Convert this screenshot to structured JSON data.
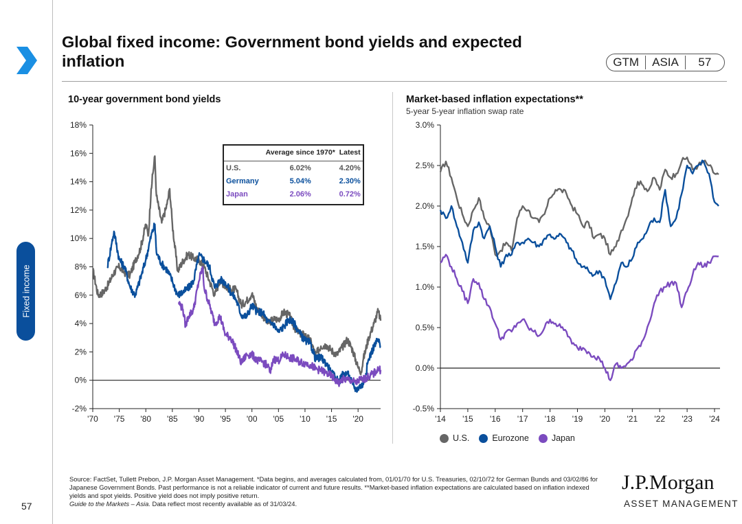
{
  "page": {
    "title": "Global fixed income: Government bond yields and expected inflation",
    "badge": [
      "GTM",
      "ASIA",
      "57"
    ],
    "side_tab": "Fixed income",
    "page_number": "57",
    "source": "Source: FactSet, Tullett Prebon, J.P. Morgan Asset Management. *Data begins, and averages calculated from, 01/01/70 for U.S. Treasuries, 02/10/72 for German Bunds and 03/02/86 for Japanese Government Bonds. Past performance is not a reliable indicator of current and future results. **Market-based inflation expectations are calculated based on inflation indexed yields and spot yields. Positive yield does not imply positive return.",
    "source_line2_italic": "Guide to the Markets – Asia.",
    "source_line2": " Data reflect most recently available as of 31/03/24.",
    "logo_name": "J.P.Morgan",
    "logo_sub": "ASSET MANAGEMENT"
  },
  "colors": {
    "us": "#666666",
    "germany": "#0a4f9c",
    "japan": "#7b4bbf",
    "navy": "#0a4f9c",
    "arrow": "#1a8fe3"
  },
  "inset_table": {
    "headers": [
      "",
      "Average since 1970*",
      "Latest"
    ],
    "rows": [
      {
        "label": "U.S.",
        "average": "6.02%",
        "latest": "4.20%",
        "color": "#555555"
      },
      {
        "label": "Germany",
        "average": "5.04%",
        "latest": "2.30%",
        "color": "#0a4f9c"
      },
      {
        "label": "Japan",
        "average": "2.06%",
        "latest": "0.72%",
        "color": "#7b4bbf"
      }
    ]
  },
  "legend": [
    {
      "name": "U.S.",
      "color": "#666666"
    },
    {
      "name": "Eurozone",
      "color": "#0a4f9c"
    },
    {
      "name": "Japan",
      "color": "#7b4bbf"
    }
  ],
  "chart_data": [
    {
      "type": "line",
      "title": "10-year government bond yields",
      "xlabel": "",
      "ylabel": "",
      "xlim": [
        1970,
        2024.25
      ],
      "ylim": [
        -2,
        18
      ],
      "x_ticks": [
        1970,
        1975,
        1980,
        1985,
        1990,
        1995,
        2000,
        2005,
        2010,
        2015,
        2020
      ],
      "x_tick_labels": [
        "'70",
        "'75",
        "'80",
        "'85",
        "'90",
        "'95",
        "'00",
        "'05",
        "'10",
        "'15",
        "'20"
      ],
      "y_ticks": [
        -2,
        0,
        2,
        4,
        6,
        8,
        10,
        12,
        14,
        16,
        18
      ],
      "y_tick_labels": [
        "-2%",
        "0%",
        "2%",
        "4%",
        "6%",
        "8%",
        "10%",
        "12%",
        "14%",
        "16%",
        "18%"
      ],
      "series": [
        {
          "name": "U.S.",
          "color": "#666666",
          "x": [
            1970,
            1971,
            1972,
            1973,
            1974,
            1975,
            1976,
            1977,
            1978,
            1979,
            1980,
            1980.5,
            1981,
            1981.7,
            1982,
            1983,
            1984,
            1984.5,
            1985,
            1986,
            1987,
            1988,
            1989,
            1990,
            1991,
            1992,
            1993,
            1994,
            1995,
            1996,
            1997,
            1998,
            1999,
            2000,
            2001,
            2002,
            2003,
            2004,
            2005,
            2006,
            2007,
            2008,
            2009,
            2010,
            2011,
            2012,
            2013,
            2014,
            2015,
            2016,
            2017,
            2018,
            2019,
            2020,
            2020.6,
            2021,
            2022,
            2023,
            2023.8,
            2024.25
          ],
          "y": [
            7.8,
            6.0,
            6.2,
            6.8,
            7.6,
            8.0,
            7.6,
            7.4,
            8.4,
            9.3,
            11.0,
            10.2,
            13.5,
            15.8,
            13.0,
            11.1,
            12.4,
            13.5,
            11.0,
            7.7,
            8.4,
            8.9,
            8.6,
            8.5,
            8.0,
            7.0,
            6.0,
            7.1,
            6.6,
            6.4,
            6.4,
            5.3,
            5.6,
            6.1,
            5.0,
            4.6,
            4.0,
            4.3,
            4.3,
            4.8,
            4.6,
            3.7,
            3.3,
            3.2,
            2.8,
            1.8,
            2.4,
            2.5,
            2.1,
            1.8,
            2.3,
            2.9,
            2.1,
            0.9,
            0.6,
            1.5,
            3.0,
            4.0,
            4.9,
            4.2
          ]
        },
        {
          "name": "Germany",
          "color": "#0a4f9c",
          "x": [
            1972.75,
            1973.5,
            1974,
            1975,
            1976,
            1977,
            1978,
            1979,
            1980,
            1981,
            1981.7,
            1982,
            1983,
            1984,
            1985,
            1986,
            1987,
            1988,
            1989,
            1990,
            1991,
            1992,
            1993,
            1994,
            1995,
            1996,
            1997,
            1998,
            1999,
            2000,
            2001,
            2002,
            2003,
            2004,
            2005,
            2006,
            2007,
            2008,
            2009,
            2010,
            2011,
            2012,
            2013,
            2014,
            2015,
            2016,
            2016.5,
            2017,
            2018,
            2019,
            2019.7,
            2020,
            2021,
            2022,
            2023,
            2023.8,
            2024.25
          ],
          "y": [
            8.0,
            9.5,
            10.5,
            8.5,
            8.0,
            6.6,
            6.0,
            7.2,
            8.5,
            10.2,
            11.0,
            9.0,
            8.2,
            7.8,
            7.0,
            6.0,
            6.2,
            6.5,
            7.0,
            8.8,
            8.5,
            8.0,
            6.5,
            7.1,
            6.9,
            6.2,
            5.7,
            4.6,
            4.5,
            5.3,
            4.8,
            4.8,
            4.1,
            4.0,
            3.4,
            3.8,
            4.3,
            4.0,
            3.3,
            2.8,
            2.6,
            1.5,
            1.6,
            1.2,
            0.5,
            0.1,
            -0.1,
            0.4,
            0.5,
            -0.3,
            -0.7,
            -0.5,
            -0.3,
            1.5,
            2.4,
            2.9,
            2.3
          ]
        },
        {
          "name": "Japan",
          "color": "#7b4bbf",
          "x": [
            1986.2,
            1987,
            1987.5,
            1988,
            1989,
            1990,
            1990.7,
            1991,
            1992,
            1993,
            1994,
            1995,
            1996,
            1997,
            1998,
            1999,
            2000,
            2001,
            2002,
            2003,
            2003.5,
            2004,
            2005,
            2006,
            2007,
            2008,
            2009,
            2010,
            2011,
            2012,
            2013,
            2014,
            2015,
            2016,
            2016.5,
            2017,
            2018,
            2019,
            2019.7,
            2020,
            2021,
            2022,
            2023,
            2023.8,
            2024.25
          ],
          "y": [
            5.5,
            5.0,
            3.8,
            4.5,
            5.0,
            7.0,
            8.0,
            6.5,
            5.3,
            4.0,
            4.5,
            3.2,
            3.0,
            2.2,
            1.2,
            1.8,
            1.8,
            1.4,
            1.3,
            1.0,
            0.5,
            1.5,
            1.4,
            1.8,
            1.6,
            1.5,
            1.3,
            1.2,
            1.1,
            0.8,
            0.7,
            0.5,
            0.3,
            -0.1,
            -0.2,
            0.05,
            0.05,
            -0.05,
            -0.25,
            0.0,
            0.07,
            0.25,
            0.5,
            0.8,
            0.72
          ]
        }
      ]
    },
    {
      "type": "line",
      "title": "Market-based inflation expectations**",
      "subtitle": "5-year 5-year inflation swap rate",
      "xlabel": "",
      "ylabel": "",
      "xlim": [
        2014,
        2024.2
      ],
      "ylim": [
        -0.5,
        3.0
      ],
      "x_ticks": [
        2014,
        2015,
        2016,
        2017,
        2018,
        2019,
        2020,
        2021,
        2022,
        2023,
        2024
      ],
      "x_tick_labels": [
        "'14",
        "'15",
        "'16",
        "'17",
        "'18",
        "'19",
        "'20",
        "'21",
        "'22",
        "'23",
        "'24"
      ],
      "y_ticks": [
        -0.5,
        0.0,
        0.5,
        1.0,
        1.5,
        2.0,
        2.5,
        3.0
      ],
      "y_tick_labels": [
        "-0.5%",
        "0.0%",
        "0.5%",
        "1.0%",
        "1.5%",
        "2.0%",
        "2.5%",
        "3.0%"
      ],
      "series": [
        {
          "name": "U.S.",
          "color": "#666666",
          "x": [
            2014,
            2014.2,
            2014.4,
            2014.6,
            2014.8,
            2015,
            2015.2,
            2015.4,
            2015.6,
            2015.8,
            2016,
            2016.2,
            2016.4,
            2016.6,
            2016.8,
            2017,
            2017.2,
            2017.4,
            2017.6,
            2017.8,
            2018,
            2018.2,
            2018.4,
            2018.6,
            2018.8,
            2019,
            2019.2,
            2019.4,
            2019.6,
            2019.8,
            2020,
            2020.2,
            2020.4,
            2020.6,
            2020.8,
            2021,
            2021.2,
            2021.4,
            2021.6,
            2021.8,
            2022,
            2022.2,
            2022.4,
            2022.6,
            2022.8,
            2023,
            2023.2,
            2023.4,
            2023.6,
            2023.8,
            2024,
            2024.15
          ],
          "y": [
            2.42,
            2.55,
            2.35,
            2.1,
            1.9,
            1.75,
            1.95,
            2.1,
            1.85,
            1.75,
            1.4,
            1.45,
            1.55,
            1.45,
            1.85,
            2.0,
            1.95,
            1.85,
            1.8,
            1.9,
            2.1,
            2.2,
            2.2,
            2.15,
            2.0,
            1.9,
            1.75,
            1.8,
            1.6,
            1.65,
            1.6,
            1.4,
            1.5,
            1.7,
            1.85,
            2.1,
            2.3,
            2.25,
            2.2,
            2.35,
            2.2,
            2.45,
            2.35,
            2.4,
            2.55,
            2.6,
            2.45,
            2.5,
            2.55,
            2.5,
            2.4,
            2.39
          ]
        },
        {
          "name": "Eurozone",
          "color": "#0a4f9c",
          "x": [
            2014,
            2014.2,
            2014.4,
            2014.6,
            2014.8,
            2015,
            2015.2,
            2015.4,
            2015.6,
            2015.8,
            2016,
            2016.2,
            2016.4,
            2016.6,
            2016.8,
            2017,
            2017.2,
            2017.4,
            2017.6,
            2017.8,
            2018,
            2018.2,
            2018.4,
            2018.6,
            2018.8,
            2019,
            2019.2,
            2019.4,
            2019.6,
            2019.8,
            2020,
            2020.2,
            2020.4,
            2020.6,
            2020.8,
            2021,
            2021.2,
            2021.4,
            2021.6,
            2021.8,
            2022,
            2022.2,
            2022.4,
            2022.6,
            2022.8,
            2023,
            2023.2,
            2023.4,
            2023.6,
            2023.8,
            2024,
            2024.15
          ],
          "y": [
            1.95,
            1.85,
            2.0,
            1.75,
            1.55,
            1.3,
            1.7,
            1.8,
            1.6,
            1.75,
            1.5,
            1.25,
            1.4,
            1.4,
            1.55,
            1.55,
            1.6,
            1.55,
            1.5,
            1.6,
            1.65,
            1.6,
            1.65,
            1.55,
            1.45,
            1.3,
            1.25,
            1.2,
            1.15,
            1.2,
            1.1,
            0.85,
            1.05,
            1.3,
            1.25,
            1.35,
            1.55,
            1.6,
            1.75,
            1.85,
            1.8,
            2.2,
            1.75,
            1.85,
            2.15,
            2.5,
            2.4,
            2.5,
            2.55,
            2.4,
            2.05,
            2.0
          ]
        },
        {
          "name": "Japan",
          "color": "#7b4bbf",
          "x": [
            2014,
            2014.2,
            2014.4,
            2014.6,
            2014.8,
            2015,
            2015.2,
            2015.4,
            2015.6,
            2015.8,
            2016,
            2016.2,
            2016.4,
            2016.6,
            2016.8,
            2017,
            2017.2,
            2017.4,
            2017.6,
            2017.8,
            2018,
            2018.2,
            2018.4,
            2018.6,
            2018.8,
            2019,
            2019.2,
            2019.4,
            2019.6,
            2019.8,
            2020,
            2020.2,
            2020.4,
            2020.6,
            2020.8,
            2021,
            2021.2,
            2021.4,
            2021.6,
            2021.8,
            2022,
            2022.2,
            2022.4,
            2022.6,
            2022.8,
            2023,
            2023.2,
            2023.4,
            2023.6,
            2023.8,
            2024,
            2024.15
          ],
          "y": [
            1.3,
            1.4,
            1.25,
            1.1,
            0.95,
            0.8,
            1.1,
            1.05,
            0.85,
            0.75,
            0.55,
            0.35,
            0.45,
            0.45,
            0.55,
            0.6,
            0.5,
            0.45,
            0.4,
            0.5,
            0.6,
            0.55,
            0.5,
            0.45,
            0.3,
            0.25,
            0.25,
            0.2,
            0.15,
            0.12,
            0.0,
            -0.15,
            0.05,
            0.0,
            0.05,
            0.1,
            0.25,
            0.35,
            0.55,
            0.8,
            0.95,
            1.0,
            1.05,
            1.05,
            0.75,
            0.95,
            1.15,
            1.3,
            1.25,
            1.3,
            1.38,
            1.38
          ]
        }
      ]
    }
  ]
}
